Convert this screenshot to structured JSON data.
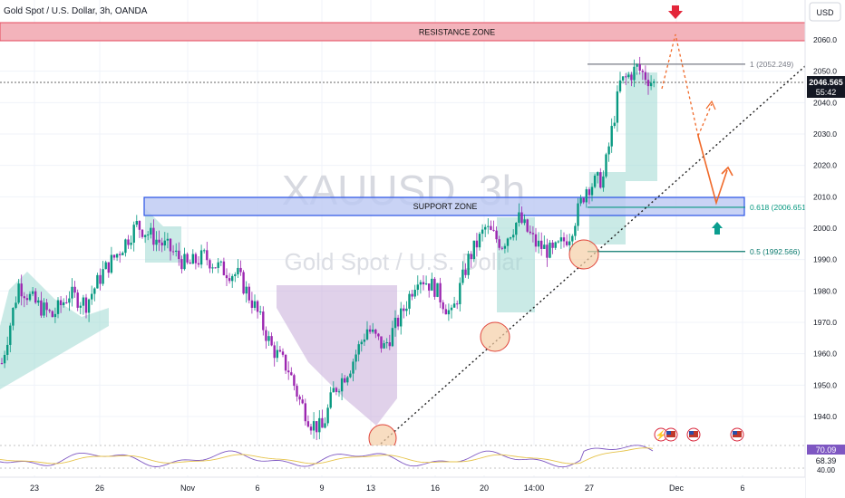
{
  "header": {
    "title": "Gold Spot / U.S. Dollar, 3h, OANDA",
    "currency_button": "USD"
  },
  "watermark": {
    "symbol": "XAUUSD, 3h",
    "name": "Gold Spot / U.S. Dollar"
  },
  "zones": {
    "resistance": {
      "label": "RESISTANCE ZONE",
      "low": 2060.5,
      "high": 2066.5
    },
    "support": {
      "label": "SUPPORT ZONE",
      "low": 2004.3,
      "high": 2010.0
    }
  },
  "fib": [
    {
      "label": "1 (2052.249)",
      "value": 2052.249
    },
    {
      "label": "0.618 (2006.651)",
      "value": 2006.651
    },
    {
      "label": "0.5 (1992.566)",
      "value": 1992.566
    }
  ],
  "current_price": {
    "value": 2046.565,
    "label": "2046.565",
    "countdown": "55:42"
  },
  "rsi": {
    "value1": "70.09",
    "value2": "68.39",
    "level": "40.00"
  },
  "chart_data": {
    "type": "candlestick",
    "title": "Gold Spot / U.S. Dollar, 3h, OANDA",
    "ylim": [
      1932,
      2068
    ],
    "y_ticks": [
      1940,
      1950,
      1960,
      1970,
      1980,
      1990,
      2000,
      2010,
      2020,
      2030,
      2040,
      2050,
      2060
    ],
    "x_ticks": [
      "23",
      "26",
      "Nov",
      "6",
      "9",
      "13",
      "16",
      "20",
      "14:00",
      "27",
      "Dec",
      "6"
    ],
    "price_path": [
      {
        "t": 0,
        "p": 1957
      },
      {
        "t": 3,
        "p": 1982
      },
      {
        "t": 6,
        "p": 1976
      },
      {
        "t": 9,
        "p": 1972
      },
      {
        "t": 12,
        "p": 1979
      },
      {
        "t": 15,
        "p": 1976
      },
      {
        "t": 18,
        "p": 1986
      },
      {
        "t": 21,
        "p": 1993
      },
      {
        "t": 24,
        "p": 2001
      },
      {
        "t": 27,
        "p": 1997
      },
      {
        "t": 30,
        "p": 1993
      },
      {
        "t": 33,
        "p": 1988
      },
      {
        "t": 36,
        "p": 1991
      },
      {
        "t": 39,
        "p": 1987
      },
      {
        "t": 42,
        "p": 1985
      },
      {
        "t": 45,
        "p": 1975
      },
      {
        "t": 48,
        "p": 1962
      },
      {
        "t": 51,
        "p": 1955
      },
      {
        "t": 53,
        "p": 1945
      },
      {
        "t": 55,
        "p": 1938
      },
      {
        "t": 57,
        "p": 1936
      },
      {
        "t": 59,
        "p": 1948
      },
      {
        "t": 62,
        "p": 1956
      },
      {
        "t": 65,
        "p": 1968
      },
      {
        "t": 68,
        "p": 1962
      },
      {
        "t": 71,
        "p": 1972
      },
      {
        "t": 74,
        "p": 1985
      },
      {
        "t": 77,
        "p": 1981
      },
      {
        "t": 80,
        "p": 1972
      },
      {
        "t": 83,
        "p": 1990
      },
      {
        "t": 86,
        "p": 2000
      },
      {
        "t": 89,
        "p": 1995
      },
      {
        "t": 92,
        "p": 2003
      },
      {
        "t": 95,
        "p": 1995
      },
      {
        "t": 98,
        "p": 1992
      },
      {
        "t": 101,
        "p": 1998
      },
      {
        "t": 104,
        "p": 2013
      },
      {
        "t": 107,
        "p": 2016
      },
      {
        "t": 110,
        "p": 2046
      },
      {
        "t": 113,
        "p": 2051
      },
      {
        "t": 116,
        "p": 2046
      }
    ],
    "projection": [
      {
        "t": 116,
        "p": 2046
      },
      {
        "t": 119,
        "p": 2064
      },
      {
        "t": 123,
        "p": 2028
      },
      {
        "t": 126,
        "p": 2007
      },
      {
        "t": 128,
        "p": 2019
      }
    ],
    "trendline": [
      {
        "t": 58,
        "p": 1933
      },
      {
        "t": 146,
        "p": 2062
      }
    ],
    "annotations": [
      "support touch 13",
      "support touch 20",
      "support touch 27"
    ]
  }
}
